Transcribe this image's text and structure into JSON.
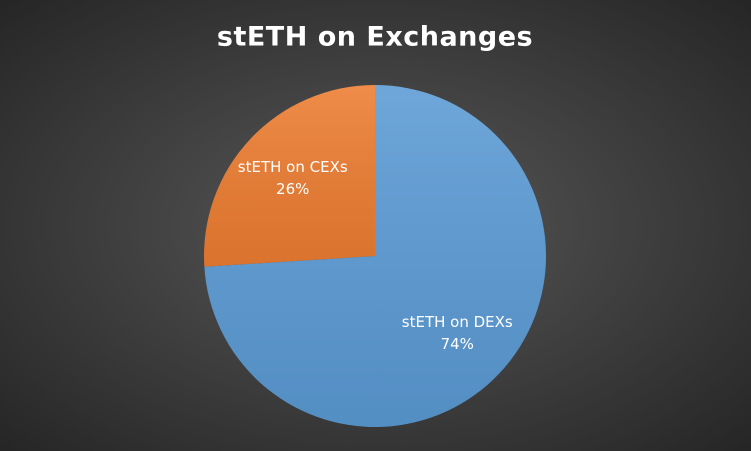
{
  "chart_data": {
    "type": "pie",
    "title": "stETH on Exchanges",
    "categories": [
      "stETH on DEXs",
      "stETH on CEXs"
    ],
    "values": [
      74,
      26
    ],
    "value_labels": [
      "74%",
      "26%"
    ],
    "colors": [
      "#5b9bd5",
      "#ed7d31"
    ]
  }
}
